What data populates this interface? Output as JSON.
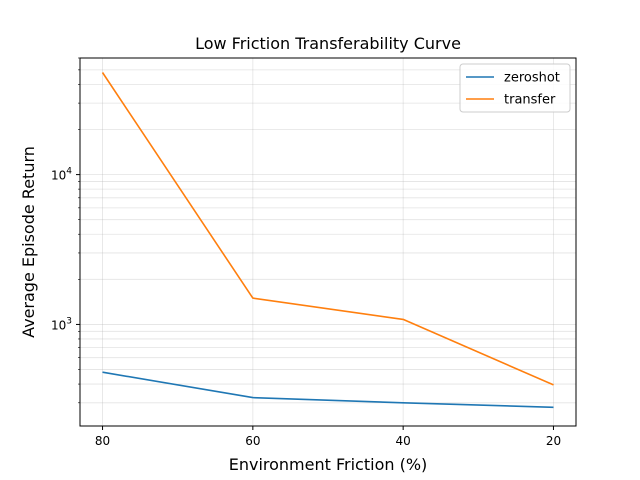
{
  "chart_data": {
    "type": "line",
    "title": "Low Friction Transferability Curve",
    "xlabel": "Environment Friction (%)",
    "ylabel": "Average Episode Return",
    "x": [
      80,
      60,
      40,
      20
    ],
    "x_ticks": [
      "80",
      "60",
      "40",
      "20"
    ],
    "x_inverted": true,
    "y_scale": "log",
    "y_ticks": [
      {
        "value": 1000,
        "base": "10",
        "exp": "3"
      },
      {
        "value": 10000,
        "base": "10",
        "exp": "4"
      }
    ],
    "ylim": [
      210,
      60000
    ],
    "grid": true,
    "legend_position": "top-right",
    "series": [
      {
        "name": "zeroshot",
        "color": "#1f77b4",
        "values": [
          480,
          325,
          300,
          280
        ]
      },
      {
        "name": "transfer",
        "color": "#ff7f0e",
        "values": [
          48000,
          1500,
          1080,
          395
        ]
      }
    ]
  }
}
